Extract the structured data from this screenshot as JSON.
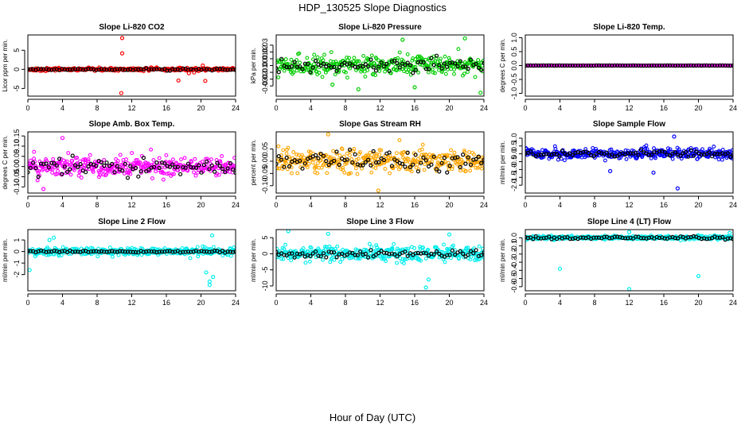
{
  "figure": {
    "title": "HDP_130525  Slope Diagnostics",
    "xlabel": "Hour of Day (UTC)"
  },
  "chart_data": [
    {
      "type": "scatter",
      "title": "Slope Li-820 CO2",
      "ylabel": "Licor ppm per min.",
      "xlim": [
        0,
        24
      ],
      "xticks": [
        0,
        4,
        8,
        12,
        16,
        20,
        24
      ],
      "ylim": [
        -7,
        9
      ],
      "yticks": [
        -5,
        0,
        5
      ],
      "ytick_labels": [
        "-5",
        "0",
        "5"
      ],
      "color": "#ff0000",
      "spread": 0.35,
      "base": 0.0,
      "overlay": {
        "color": "#000000",
        "spread": 0.25
      },
      "outliers": [
        {
          "x": 10.9,
          "y": 8.2
        },
        {
          "x": 10.9,
          "y": 4.2
        },
        {
          "x": 10.8,
          "y": -6.2
        },
        {
          "x": 17.4,
          "y": -2.9
        },
        {
          "x": 18.6,
          "y": -1.0
        },
        {
          "x": 19.2,
          "y": -0.8
        },
        {
          "x": 20.5,
          "y": -3.0
        },
        {
          "x": 20.2,
          "y": 1.0
        }
      ]
    },
    {
      "type": "scatter",
      "title": "Slope Li-820 Pressure",
      "ylabel": "kPa per min.",
      "xlim": [
        0,
        24
      ],
      "xticks": [
        0,
        4,
        8,
        12,
        16,
        20,
        24
      ],
      "ylim": [
        -0.045,
        0.045
      ],
      "yticks": [
        -0.03,
        -0.02,
        -0.01,
        0.0,
        0.01,
        0.02,
        0.03
      ],
      "ytick_labels": [
        "-0.03",
        "-0.02",
        "-0.01",
        "0.00",
        "0.01",
        "0.02",
        "0.03"
      ],
      "color": "#00cc00",
      "spread": 0.012,
      "base": 0.0,
      "overlay": {
        "color": "#000000",
        "spread": 0.01
      },
      "outliers": [
        {
          "x": 21.8,
          "y": 0.04
        },
        {
          "x": 23.6,
          "y": -0.04
        },
        {
          "x": 9.5,
          "y": -0.035
        },
        {
          "x": 16.0,
          "y": -0.032
        },
        {
          "x": 14.6,
          "y": 0.038
        },
        {
          "x": 6.5,
          "y": -0.028
        }
      ]
    },
    {
      "type": "scatter",
      "title": "Slope Li-820 Temp.",
      "ylabel": "degrees C per min.",
      "xlim": [
        0,
        24
      ],
      "xticks": [
        0,
        4,
        8,
        12,
        16,
        20,
        24
      ],
      "ylim": [
        -1.1,
        1.1
      ],
      "yticks": [
        -1.0,
        -0.5,
        0.0,
        0.5,
        1.0
      ],
      "ytick_labels": [
        "-1.0",
        "-0.5",
        "0.0",
        "0.5",
        "1.0"
      ],
      "color": "#ff00ff",
      "spread": 0.004,
      "base": 0.0,
      "overlay": {
        "color": "#000000",
        "spread": 0.004
      },
      "outliers": []
    },
    {
      "type": "scatter",
      "title": "Slope Amb. Box Temp.",
      "ylabel": "degrees C per min.",
      "xlim": [
        0,
        24
      ],
      "xticks": [
        0,
        4,
        8,
        12,
        16,
        20,
        24
      ],
      "ylim": [
        -0.13,
        0.17
      ],
      "yticks": [
        -0.1,
        -0.05,
        0.0,
        0.05,
        0.1,
        0.15
      ],
      "ytick_labels": [
        "-0.10",
        "-0.05",
        "0.00",
        "0.05",
        "0.10",
        "0.15"
      ],
      "color": "#ff00ff",
      "spread": 0.045,
      "base": 0.0,
      "overlay": {
        "color": "#000000",
        "spread": 0.04
      },
      "outliers": [
        {
          "x": 4.0,
          "y": 0.14
        },
        {
          "x": 1.8,
          "y": -0.11
        }
      ]
    },
    {
      "type": "scatter",
      "title": "Slope Gas Stream RH",
      "ylabel": "percent per min.",
      "xlim": [
        0,
        24
      ],
      "xticks": [
        0,
        4,
        8,
        12,
        16,
        20,
        24
      ],
      "ylim": [
        -0.13,
        0.12
      ],
      "yticks": [
        -0.1,
        -0.05,
        0.0,
        0.05
      ],
      "ytick_labels": [
        "-0.10",
        "-0.05",
        "0.00",
        "0.05"
      ],
      "color": "#ffa500",
      "spread": 0.04,
      "base": 0.0,
      "overlay": {
        "color": "#000000",
        "spread": 0.035
      },
      "outliers": [
        {
          "x": 11.8,
          "y": -0.12
        },
        {
          "x": 6.0,
          "y": 0.11
        }
      ]
    },
    {
      "type": "scatter",
      "title": "Slope Sample Flow",
      "ylabel": "ml/min per min.",
      "xlim": [
        0,
        24
      ],
      "xticks": [
        0,
        4,
        8,
        12,
        16,
        20,
        24
      ],
      "ylim": [
        -2.5,
        1.4
      ],
      "yticks": [
        -2.0,
        -1.5,
        -1.0,
        -0.5,
        0.0,
        0.5,
        1.0
      ],
      "ytick_labels": [
        "-2.0",
        "-1.5",
        "-1.0",
        "-0.5",
        "0.0",
        "0.5",
        "1.0"
      ],
      "color": "#0000ff",
      "spread": 0.3,
      "base": 0.0,
      "overlay": {
        "color": "#000000",
        "spread": 0.2
      },
      "outliers": [
        {
          "x": 17.6,
          "y": -2.2
        },
        {
          "x": 9.8,
          "y": -1.1
        },
        {
          "x": 14.8,
          "y": -1.2
        },
        {
          "x": 17.2,
          "y": 1.1
        }
      ]
    },
    {
      "type": "scatter",
      "title": "Slope Line 2 Flow",
      "ylabel": "ml/min per min.",
      "xlim": [
        0,
        24
      ],
      "xticks": [
        0,
        4,
        8,
        12,
        16,
        20,
        24
      ],
      "ylim": [
        -3.4,
        1.9
      ],
      "yticks": [
        -2,
        -1,
        0,
        1
      ],
      "ytick_labels": [
        "-2",
        "-1",
        "0",
        "1"
      ],
      "color": "#00eeee",
      "spread": 0.3,
      "base": 0.0,
      "overlay": {
        "color": "#000000",
        "spread": 0.08
      },
      "outliers": [
        {
          "x": 21.0,
          "y": -2.6
        },
        {
          "x": 21.4,
          "y": -2.2
        },
        {
          "x": 20.6,
          "y": -1.8
        },
        {
          "x": 0.2,
          "y": -1.6
        },
        {
          "x": 21.3,
          "y": 1.4
        },
        {
          "x": 21.0,
          "y": -2.9
        },
        {
          "x": 3.0,
          "y": 1.2
        },
        {
          "x": 2.5,
          "y": 1.0
        }
      ]
    },
    {
      "type": "scatter",
      "title": "Slope Line 3 Flow",
      "ylabel": "ml/min per min.",
      "xlim": [
        0,
        24
      ],
      "xticks": [
        0,
        4,
        8,
        12,
        16,
        20,
        24
      ],
      "ylim": [
        -11.5,
        7.5
      ],
      "yticks": [
        -10,
        -5,
        0,
        5
      ],
      "ytick_labels": [
        "-10",
        "-5",
        "0",
        "5"
      ],
      "color": "#00eeee",
      "spread": 2.0,
      "base": 0.0,
      "overlay": {
        "color": "#000000",
        "spread": 1.0
      },
      "outliers": [
        {
          "x": 17.3,
          "y": -10.5
        },
        {
          "x": 17.6,
          "y": -8.0
        },
        {
          "x": 1.4,
          "y": 7.0
        },
        {
          "x": 20.0,
          "y": 6.0
        },
        {
          "x": 6.0,
          "y": 6.2
        }
      ]
    },
    {
      "type": "scatter",
      "title": "Slope Line 4 (LT) Flow",
      "ylabel": "ml/min per min.",
      "xlim": [
        0,
        24
      ],
      "xticks": [
        0,
        4,
        8,
        12,
        16,
        20,
        24
      ],
      "ylim": [
        -0.65,
        0.1
      ],
      "yticks": [
        -0.6,
        -0.5,
        -0.4,
        -0.3,
        -0.2,
        -0.1,
        0.0
      ],
      "ytick_labels": [
        "-0.6",
        "-0.5",
        "-0.4",
        "-0.3",
        "-0.2",
        "-0.1",
        "0.0"
      ],
      "color": "#00eeee",
      "spread": 0.02,
      "base": 0.0,
      "overlay": {
        "color": "#000000",
        "spread": 0.02
      },
      "outliers": [
        {
          "x": 4.0,
          "y": -0.38
        },
        {
          "x": 12.0,
          "y": -0.63
        },
        {
          "x": 20.0,
          "y": -0.47
        },
        {
          "x": 12.0,
          "y": 0.07
        },
        {
          "x": 23.6,
          "y": 0.06
        }
      ]
    }
  ]
}
